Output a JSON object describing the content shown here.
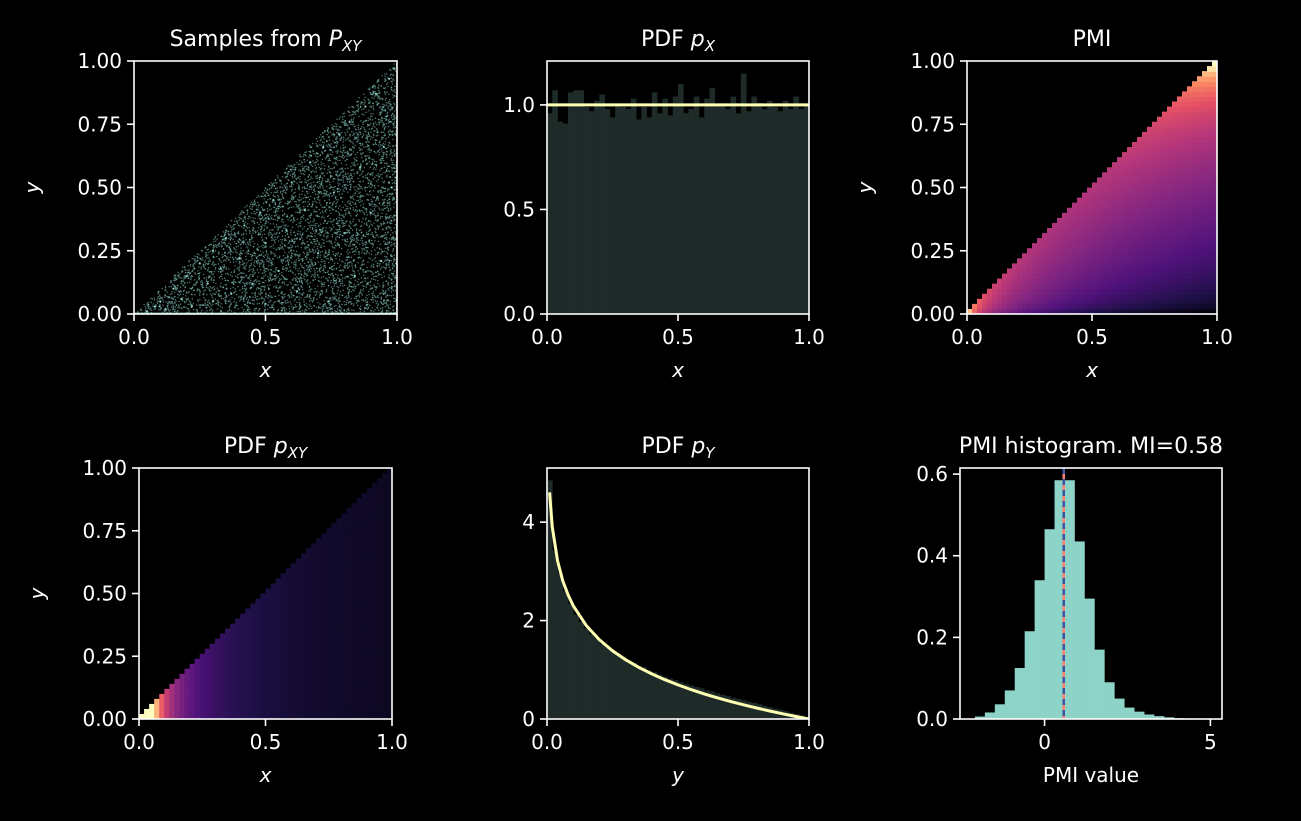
{
  "figure": {
    "background": "#000000",
    "foreground": "#ffffff"
  },
  "chart_data": [
    {
      "id": "samples",
      "type": "scatter",
      "title": "Samples from ",
      "title_math": {
        "base": "P",
        "sub": "XY"
      },
      "xlabel": "x",
      "ylabel": "y",
      "xlim": [
        0,
        1
      ],
      "ylim": [
        0,
        1
      ],
      "xticks": [
        0.0,
        0.5,
        1.0
      ],
      "xtick_labels": [
        "0.0",
        "0.5",
        "1.0"
      ],
      "yticks": [
        0,
        0.25,
        0.5,
        0.75,
        1.0
      ],
      "ytick_labels": [
        "0.00",
        "0.25",
        "0.50",
        "0.75",
        "1.00"
      ],
      "region": "0 <= y <= x <= 1",
      "points": [
        [
          0.05,
          0.01
        ],
        [
          0.08,
          0.03
        ],
        [
          0.1,
          0.05
        ],
        [
          0.12,
          0.02
        ],
        [
          0.15,
          0.1
        ],
        [
          0.18,
          0.06
        ],
        [
          0.2,
          0.15
        ],
        [
          0.22,
          0.03
        ],
        [
          0.25,
          0.2
        ],
        [
          0.28,
          0.12
        ],
        [
          0.3,
          0.25
        ],
        [
          0.3,
          0.05
        ],
        [
          0.33,
          0.18
        ],
        [
          0.35,
          0.3
        ],
        [
          0.37,
          0.08
        ],
        [
          0.4,
          0.22
        ],
        [
          0.42,
          0.35
        ],
        [
          0.45,
          0.12
        ],
        [
          0.48,
          0.4
        ],
        [
          0.5,
          0.28
        ],
        [
          0.5,
          0.04
        ],
        [
          0.53,
          0.45
        ],
        [
          0.55,
          0.17
        ],
        [
          0.58,
          0.33
        ],
        [
          0.6,
          0.52
        ],
        [
          0.62,
          0.09
        ],
        [
          0.65,
          0.41
        ],
        [
          0.67,
          0.6
        ],
        [
          0.7,
          0.24
        ],
        [
          0.72,
          0.66
        ],
        [
          0.74,
          0.05
        ],
        [
          0.76,
          0.48
        ],
        [
          0.78,
          0.71
        ],
        [
          0.8,
          0.32
        ],
        [
          0.82,
          0.76
        ],
        [
          0.84,
          0.15
        ],
        [
          0.86,
          0.58
        ],
        [
          0.88,
          0.82
        ],
        [
          0.9,
          0.4
        ],
        [
          0.92,
          0.87
        ],
        [
          0.94,
          0.21
        ],
        [
          0.95,
          0.66
        ],
        [
          0.97,
          0.93
        ],
        [
          0.98,
          0.5
        ],
        [
          0.99,
          0.97
        ],
        [
          1.0,
          0.02
        ]
      ],
      "color": "#8dd3c7"
    },
    {
      "id": "pdf_x",
      "type": "bar",
      "title": "PDF ",
      "title_math": {
        "base": "p",
        "sub": "X"
      },
      "xlabel": "x",
      "ylabel": "",
      "xlim": [
        0,
        1
      ],
      "ylim": [
        0,
        1.21
      ],
      "xticks": [
        0.0,
        0.5,
        1.0
      ],
      "xtick_labels": [
        "0.0",
        "0.5",
        "1.0"
      ],
      "yticks": [
        0,
        0.5,
        1.0
      ],
      "ytick_labels": [
        "0.0",
        "0.5",
        "1.0"
      ],
      "bin_width": 0.02,
      "values": [
        0.96,
        1.07,
        0.92,
        0.91,
        1.06,
        1.07,
        1.07,
        0.99,
        0.97,
        1.02,
        1.05,
        0.98,
        0.94,
        1.0,
        0.99,
        0.98,
        1.03,
        0.93,
        0.99,
        0.94,
        1.06,
        0.96,
        1.03,
        0.95,
        1.04,
        1.1,
        0.96,
        0.98,
        1.04,
        0.94,
        1.03,
        1.08,
        1.0,
        1.0,
        0.98,
        1.04,
        0.96,
        1.15,
        0.97,
        1.04,
        1.01,
        0.98,
        1.02,
        0.99,
        0.97,
        1.02,
        0.98,
        1.04,
        0.98,
        1.0
      ],
      "bar_color": "#1e2b28",
      "curve": {
        "x": [
          0,
          1
        ],
        "y": [
          1,
          1
        ],
        "color": "#ffffb3"
      }
    },
    {
      "id": "pmi_map",
      "type": "heatmap",
      "title": "PMI",
      "xlabel": "x",
      "ylabel": "y",
      "xlim": [
        0,
        1
      ],
      "ylim": [
        0,
        1
      ],
      "xticks": [
        0.0,
        0.5,
        1.0
      ],
      "xtick_labels": [
        "0.0",
        "0.5",
        "1.0"
      ],
      "yticks": [
        0,
        0.25,
        0.5,
        0.75,
        1.0
      ],
      "ytick_labels": [
        "0.00",
        "0.25",
        "0.50",
        "0.75",
        "1.00"
      ],
      "grid_n": 50,
      "region": "0 <= y <= x <= 1",
      "colormap": "magma",
      "function": "pmi(x,y) = -ln(x) - ln(-ln(y))",
      "value_range": [
        -1.6,
        3.8
      ]
    },
    {
      "id": "pdf_xy",
      "type": "heatmap",
      "title": "PDF ",
      "title_math": {
        "base": "p",
        "sub": "XY"
      },
      "xlabel": "x",
      "ylabel": "y",
      "xlim": [
        0,
        1
      ],
      "ylim": [
        0,
        1
      ],
      "xticks": [
        0.0,
        0.5,
        1.0
      ],
      "xtick_labels": [
        "0.0",
        "0.5",
        "1.0"
      ],
      "yticks": [
        0,
        0.25,
        0.5,
        0.75,
        1.0
      ],
      "ytick_labels": [
        "0.00",
        "0.25",
        "0.50",
        "0.75",
        "1.00"
      ],
      "grid_n": 50,
      "region": "0 <= y <= x <= 1",
      "colormap": "magma",
      "function": "p(x,y) = 1/x",
      "value_range": [
        0,
        17
      ]
    },
    {
      "id": "pdf_y",
      "type": "bar",
      "title": "PDF ",
      "title_math": {
        "base": "p",
        "sub": "Y"
      },
      "xlabel": "y",
      "ylabel": "",
      "xlim": [
        0,
        1
      ],
      "ylim": [
        0,
        5.1
      ],
      "xticks": [
        0.0,
        0.5,
        1.0
      ],
      "xtick_labels": [
        "0.0",
        "0.5",
        "1.0"
      ],
      "yticks": [
        0,
        2,
        4
      ],
      "ytick_labels": [
        "0",
        "2",
        "4"
      ],
      "bin_width": 0.02,
      "values": [
        4.85,
        3.42,
        2.95,
        2.6,
        2.34,
        2.12,
        1.97,
        1.84,
        1.72,
        1.64,
        1.52,
        1.46,
        1.38,
        1.33,
        1.27,
        1.19,
        1.14,
        1.08,
        1.05,
        0.98,
        0.95,
        0.9,
        0.86,
        0.82,
        0.79,
        0.75,
        0.71,
        0.68,
        0.65,
        0.62,
        0.58,
        0.56,
        0.52,
        0.49,
        0.47,
        0.43,
        0.41,
        0.38,
        0.35,
        0.33,
        0.3,
        0.27,
        0.24,
        0.21,
        0.19,
        0.16,
        0.13,
        0.1,
        0.07,
        0.03
      ],
      "bar_color": "#1e2b28",
      "curve": {
        "x": [
          0.01,
          0.02,
          0.04,
          0.06,
          0.08,
          0.1,
          0.15,
          0.2,
          0.25,
          0.3,
          0.35,
          0.4,
          0.45,
          0.5,
          0.55,
          0.6,
          0.65,
          0.7,
          0.75,
          0.8,
          0.85,
          0.9,
          0.95,
          1.0
        ],
        "y": [
          4.605,
          3.912,
          3.219,
          2.813,
          2.526,
          2.303,
          1.897,
          1.609,
          1.386,
          1.204,
          1.05,
          0.916,
          0.799,
          0.693,
          0.598,
          0.511,
          0.431,
          0.357,
          0.288,
          0.223,
          0.163,
          0.105,
          0.051,
          0.0
        ],
        "color": "#ffffb3"
      }
    },
    {
      "id": "pmi_hist",
      "type": "bar",
      "title": "PMI histogram. MI=0.58",
      "xlabel": "PMI value",
      "ylabel": "",
      "xlim": [
        -2.55,
        5.35
      ],
      "ylim": [
        0,
        0.615
      ],
      "xticks": [
        0,
        5
      ],
      "xtick_labels": [
        "0",
        "5"
      ],
      "yticks": [
        0,
        0.2,
        0.4,
        0.6
      ],
      "ytick_labels": [
        "0.0",
        "0.2",
        "0.4",
        "0.6"
      ],
      "bin_edges": [
        -2.1,
        -1.8,
        -1.5,
        -1.2,
        -0.9,
        -0.6,
        -0.3,
        0.0,
        0.3,
        0.6,
        0.9,
        1.2,
        1.5,
        1.8,
        2.1,
        2.4,
        2.7,
        3.0,
        3.3,
        3.6,
        3.9,
        4.2
      ],
      "values": [
        0.006,
        0.016,
        0.036,
        0.07,
        0.125,
        0.215,
        0.34,
        0.465,
        0.585,
        0.585,
        0.435,
        0.295,
        0.17,
        0.09,
        0.05,
        0.028,
        0.018,
        0.011,
        0.007,
        0.004,
        0.002
      ],
      "bar_color": "#8dd3c7",
      "vlines": [
        {
          "x": 0.578,
          "color": "#fb8072",
          "style": "solid"
        },
        {
          "x": 0.578,
          "color": "#3d52a1",
          "style": "dashed"
        }
      ]
    }
  ]
}
